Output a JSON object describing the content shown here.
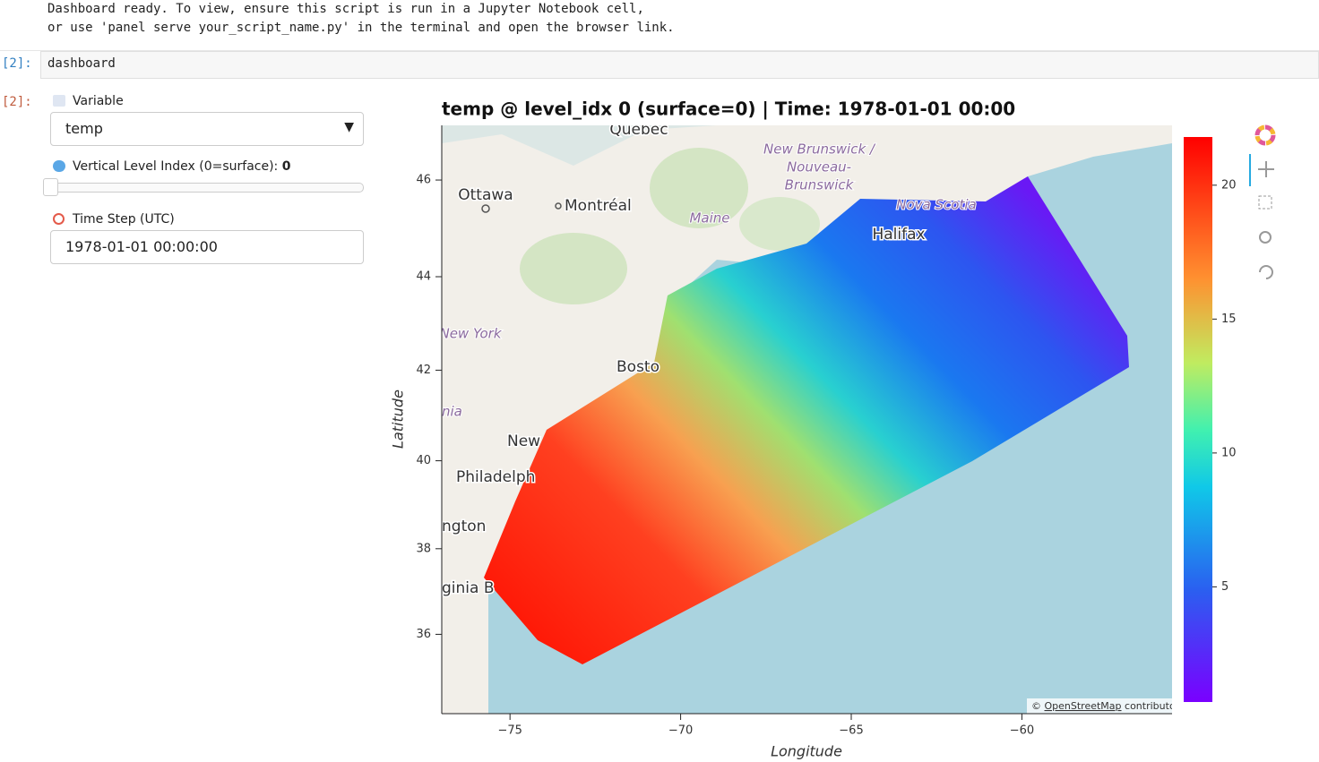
{
  "output_text": [
    "Dashboard ready. To view, ensure this script is run in a Jupyter Notebook cell,",
    "or use 'panel serve your_script_name.py' in the terminal and open the browser link."
  ],
  "input_cell": {
    "prompt": "[2]:",
    "code": "dashboard"
  },
  "output_prompt": "[2]:",
  "widgets": {
    "variable": {
      "label": "Variable",
      "value": "temp"
    },
    "level": {
      "label": "Vertical Level Index (0=surface):",
      "value": 0
    },
    "time": {
      "label": "Time Step (UTC)",
      "value": "1978-01-01 00:00:00"
    }
  },
  "chart_data": {
    "type": "map",
    "title": "temp @ level_idx 0 (surface=0) | Time: 1978-01-01 00:00",
    "xlabel": "Longitude",
    "ylabel": "Latitude",
    "xlim": [
      -77,
      -55.6
    ],
    "ylim": [
      34.1,
      47.1
    ],
    "yscale": "mercator",
    "xticks": [
      {
        "value": -75,
        "label": "−75"
      },
      {
        "value": -70,
        "label": "−70"
      },
      {
        "value": -65,
        "label": "−65"
      },
      {
        "value": -60,
        "label": "−60"
      }
    ],
    "yticks": [
      36,
      38,
      40,
      42,
      44,
      46
    ],
    "colorbar": {
      "lim": [
        0.7,
        21.8
      ],
      "ticks": [
        5,
        10,
        15,
        20
      ]
    },
    "place_labels": [
      "Quebec",
      "Ottawa",
      "Montréal",
      "Maine",
      "New Brunswick /",
      "Nouveau-",
      "Brunswick",
      "Nova Scotia",
      "Halifax",
      "New York",
      "Bosto",
      "nia",
      "New",
      "Philadelph",
      "ngton",
      "ginia B"
    ],
    "attribution": {
      "symbol": "©",
      "link": "OpenStreetMap",
      "text": "contributors"
    }
  }
}
